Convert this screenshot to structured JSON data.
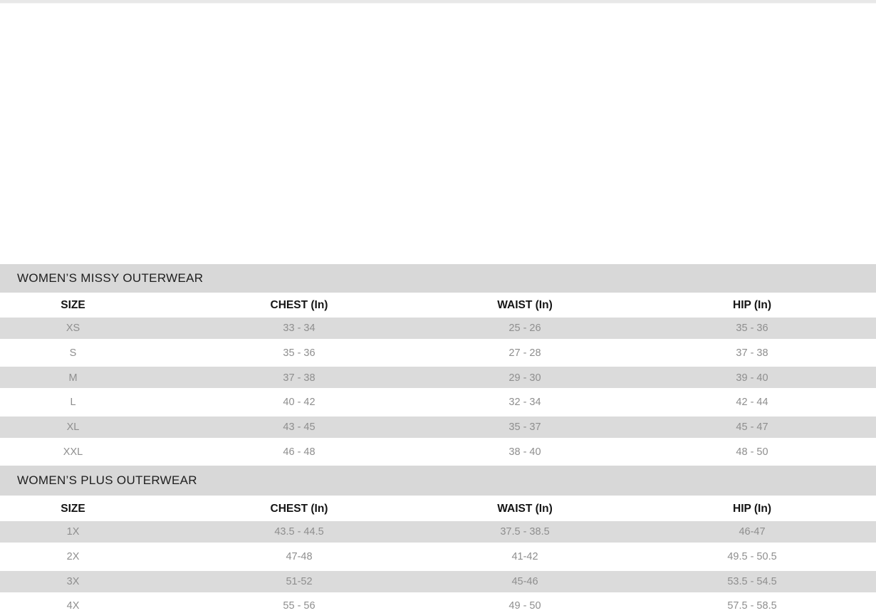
{
  "page": {
    "top_strip_color": "#e8e8e8",
    "background": "#ffffff"
  },
  "colors": {
    "band_bg": "#d8d8d8",
    "stripe_bg": "#dbdbdb",
    "data_text": "#8e8e8e",
    "header_text": "#141414",
    "title_text": "#1e1e1e"
  },
  "size_charts": [
    {
      "title": "WOMEN’S MISSY OUTERWEAR",
      "columns": [
        "SIZE",
        "CHEST (In)",
        "WAIST (In)",
        "HIP (In)"
      ],
      "rows": [
        [
          "XS",
          "33 - 34",
          "25 - 26",
          "35 - 36"
        ],
        [
          "S",
          "35 - 36",
          "27 - 28",
          "37 - 38"
        ],
        [
          "M",
          "37 - 38",
          "29 - 30",
          "39 - 40"
        ],
        [
          "L",
          "40 - 42",
          "32 - 34",
          "42 - 44"
        ],
        [
          "XL",
          "43 - 45",
          "35 - 37",
          "45 - 47"
        ],
        [
          "XXL",
          "46 - 48",
          "38 - 40",
          "48 - 50"
        ]
      ]
    },
    {
      "title": "WOMEN’S PLUS OUTERWEAR",
      "columns": [
        "SIZE",
        "CHEST (In)",
        "WAIST (In)",
        "HIP (In)"
      ],
      "rows": [
        [
          "1X",
          "43.5 - 44.5",
          "37.5 - 38.5",
          "46-47"
        ],
        [
          "2X",
          "47-48",
          "41-42",
          "49.5 - 50.5"
        ],
        [
          "3X",
          "51-52",
          "45-46",
          "53.5 - 54.5"
        ],
        [
          "4X",
          "55 - 56",
          "49 - 50",
          "57.5 - 58.5"
        ]
      ]
    }
  ]
}
